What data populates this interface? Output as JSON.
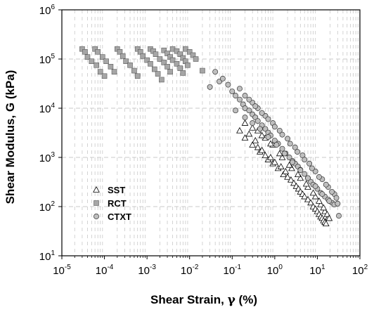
{
  "chart_data": {
    "type": "scatter",
    "title": "",
    "xlabel_main": "Shear Strain, ",
    "xlabel_symbol": "γ",
    "xlabel_unit": " (%)",
    "ylabel": "Shear Modulus, G (kPa)",
    "x_scale": "log",
    "y_scale": "log",
    "xlim": [
      1e-05,
      100
    ],
    "ylim": [
      10,
      1000000
    ],
    "x_tick_exponents": [
      -5,
      -4,
      -3,
      -2,
      -1,
      0,
      1,
      2
    ],
    "y_tick_exponents": [
      1,
      2,
      3,
      4,
      5,
      6
    ],
    "tick_base": "10",
    "grid": "dashed light-gray vertical minor gridlines in upper-left region; horizontal at decades",
    "legend_placement": "lower-left",
    "colors": {
      "sst_fill": "#ffffff",
      "rct_fill": "#a6a6a6",
      "ctxt_fill": "#bfbfbf",
      "stroke": "#000000",
      "grid": "#c8c8c8"
    },
    "series": [
      {
        "name": "SST",
        "marker": "triangle",
        "points": [
          [
            0.15,
            3500
          ],
          [
            0.2,
            2500
          ],
          [
            0.25,
            3000
          ],
          [
            0.3,
            1800
          ],
          [
            0.35,
            2200
          ],
          [
            0.4,
            1600
          ],
          [
            0.45,
            1300
          ],
          [
            0.5,
            1400
          ],
          [
            0.6,
            1100
          ],
          [
            0.7,
            900
          ],
          [
            0.8,
            1000
          ],
          [
            0.9,
            750
          ],
          [
            1.0,
            800
          ],
          [
            1.2,
            600
          ],
          [
            1.4,
            650
          ],
          [
            1.6,
            450
          ],
          [
            1.8,
            520
          ],
          [
            2.0,
            400
          ],
          [
            2.4,
            350
          ],
          [
            2.8,
            300
          ],
          [
            3.2,
            260
          ],
          [
            3.6,
            230
          ],
          [
            4.0,
            200
          ],
          [
            4.5,
            180
          ],
          [
            5.0,
            160
          ],
          [
            6.0,
            140
          ],
          [
            7.0,
            120
          ],
          [
            8.0,
            100
          ],
          [
            9.0,
            90
          ],
          [
            10.0,
            80
          ],
          [
            11.0,
            70
          ],
          [
            12.0,
            62
          ],
          [
            13.0,
            58
          ],
          [
            14.0,
            52
          ],
          [
            15.0,
            48
          ],
          [
            16.0,
            45
          ],
          [
            0.2,
            5000
          ],
          [
            0.4,
            3500
          ],
          [
            0.6,
            2500
          ],
          [
            0.9,
            1800
          ],
          [
            1.5,
            1000
          ],
          [
            2.5,
            600
          ],
          [
            4.0,
            380
          ],
          [
            6.0,
            250
          ],
          [
            9.0,
            160
          ],
          [
            12.0,
            110
          ],
          [
            15.0,
            80
          ],
          [
            18.0,
            60
          ],
          [
            0.3,
            4000
          ],
          [
            0.5,
            2800
          ],
          [
            0.8,
            1900
          ],
          [
            1.3,
            1200
          ],
          [
            2.2,
            700
          ],
          [
            3.5,
            450
          ],
          [
            5.5,
            290
          ],
          [
            8.0,
            190
          ],
          [
            11.0,
            130
          ],
          [
            14.0,
            95
          ],
          [
            17.0,
            70
          ],
          [
            19.0,
            58
          ]
        ]
      },
      {
        "name": "RCT",
        "marker": "square",
        "points": [
          [
            3e-05,
            160000
          ],
          [
            3.5e-05,
            140000
          ],
          [
            4e-05,
            110000
          ],
          [
            5e-05,
            90000
          ],
          [
            6.5e-05,
            75000
          ],
          [
            8e-05,
            55000
          ],
          [
            0.0001,
            45000
          ],
          [
            6e-05,
            160000
          ],
          [
            7e-05,
            140000
          ],
          [
            9e-05,
            110000
          ],
          [
            0.00011,
            90000
          ],
          [
            0.00014,
            70000
          ],
          [
            0.00017,
            55000
          ],
          [
            0.0002,
            160000
          ],
          [
            0.00023,
            140000
          ],
          [
            0.00027,
            115000
          ],
          [
            0.00032,
            90000
          ],
          [
            0.0004,
            75000
          ],
          [
            0.0005,
            58000
          ],
          [
            0.0006,
            45000
          ],
          [
            0.0006,
            160000
          ],
          [
            0.0007,
            140000
          ],
          [
            0.0008,
            115000
          ],
          [
            0.001,
            95000
          ],
          [
            0.0012,
            80000
          ],
          [
            0.0015,
            62000
          ],
          [
            0.0018,
            50000
          ],
          [
            0.0022,
            38000
          ],
          [
            0.0012,
            160000
          ],
          [
            0.0014,
            145000
          ],
          [
            0.0016,
            125000
          ],
          [
            0.002,
            100000
          ],
          [
            0.0025,
            85000
          ],
          [
            0.003,
            70000
          ],
          [
            0.0035,
            55000
          ],
          [
            0.0025,
            150000
          ],
          [
            0.003,
            130000
          ],
          [
            0.0035,
            110000
          ],
          [
            0.004,
            95000
          ],
          [
            0.005,
            80000
          ],
          [
            0.006,
            65000
          ],
          [
            0.007,
            52000
          ],
          [
            0.004,
            160000
          ],
          [
            0.005,
            145000
          ],
          [
            0.006,
            125000
          ],
          [
            0.007,
            105000
          ],
          [
            0.008,
            90000
          ],
          [
            0.009,
            75000
          ],
          [
            0.008,
            160000
          ],
          [
            0.01,
            140000
          ],
          [
            0.012,
            120000
          ],
          [
            0.014,
            100000
          ],
          [
            0.02,
            58000
          ]
        ]
      },
      {
        "name": "CTXT",
        "marker": "circle",
        "points": [
          [
            0.03,
            27000
          ],
          [
            0.04,
            55000
          ],
          [
            0.05,
            35000
          ],
          [
            0.06,
            40000
          ],
          [
            0.08,
            30000
          ],
          [
            0.1,
            22000
          ],
          [
            0.12,
            18000
          ],
          [
            0.15,
            15000
          ],
          [
            0.18,
            12000
          ],
          [
            0.2,
            10000
          ],
          [
            0.25,
            9000
          ],
          [
            0.3,
            7500
          ],
          [
            0.35,
            6500
          ],
          [
            0.4,
            5500
          ],
          [
            0.5,
            4500
          ],
          [
            0.6,
            3800
          ],
          [
            0.7,
            3200
          ],
          [
            0.8,
            2800
          ],
          [
            1.0,
            2200
          ],
          [
            1.2,
            1900
          ],
          [
            1.5,
            1500
          ],
          [
            1.8,
            1200
          ],
          [
            2.2,
            1000
          ],
          [
            2.6,
            850
          ],
          [
            3.0,
            750
          ],
          [
            3.5,
            650
          ],
          [
            4.0,
            560
          ],
          [
            5.0,
            460
          ],
          [
            6.0,
            380
          ],
          [
            7.0,
            320
          ],
          [
            8.0,
            280
          ],
          [
            10.0,
            230
          ],
          [
            12.0,
            190
          ],
          [
            15.0,
            160
          ],
          [
            18.0,
            140
          ],
          [
            22.0,
            120
          ],
          [
            25.0,
            110
          ],
          [
            30.0,
            115
          ],
          [
            32.0,
            65
          ],
          [
            0.15,
            25000
          ],
          [
            0.2,
            18000
          ],
          [
            0.3,
            13000
          ],
          [
            0.4,
            10000
          ],
          [
            0.6,
            7000
          ],
          [
            0.9,
            5000
          ],
          [
            1.3,
            3500
          ],
          [
            2.0,
            2400
          ],
          [
            3.0,
            1600
          ],
          [
            4.5,
            1100
          ],
          [
            6.5,
            750
          ],
          [
            9.0,
            520
          ],
          [
            13.0,
            360
          ],
          [
            18.0,
            250
          ],
          [
            25.0,
            180
          ],
          [
            0.25,
            15000
          ],
          [
            0.35,
            11000
          ],
          [
            0.5,
            8000
          ],
          [
            0.7,
            6000
          ],
          [
            1.0,
            4200
          ],
          [
            1.5,
            2900
          ],
          [
            2.3,
            1900
          ],
          [
            3.4,
            1300
          ],
          [
            5.0,
            900
          ],
          [
            7.5,
            600
          ],
          [
            11.0,
            400
          ],
          [
            16.0,
            280
          ],
          [
            22.0,
            200
          ],
          [
            28.0,
            150
          ],
          [
            0.12,
            9000
          ],
          [
            0.2,
            6500
          ],
          [
            0.3,
            5000
          ],
          [
            0.45,
            3800
          ],
          [
            0.7,
            2600
          ],
          [
            1.1,
            1800
          ],
          [
            1.7,
            1200
          ],
          [
            2.6,
            800
          ],
          [
            4.0,
            550
          ],
          [
            6.0,
            380
          ],
          [
            9.0,
            260
          ],
          [
            13.0,
            180
          ],
          [
            19.0,
            130
          ]
        ]
      }
    ]
  },
  "legend": {
    "items": [
      {
        "label": "SST",
        "marker": "triangle"
      },
      {
        "label": "RCT",
        "marker": "square"
      },
      {
        "label": "CTXT",
        "marker": "circle"
      }
    ]
  }
}
